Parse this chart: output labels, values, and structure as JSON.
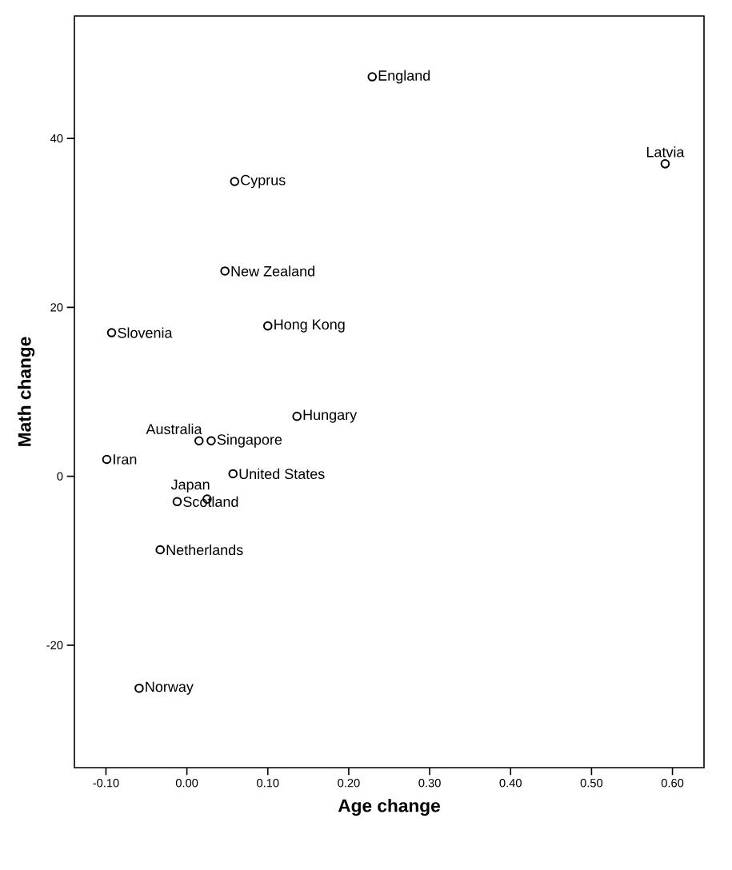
{
  "chart_data": {
    "type": "scatter",
    "xlabel": "Age change",
    "ylabel": "Math change",
    "xlim": [
      -0.139,
      0.639
    ],
    "ylim": [
      -34.5,
      54.5
    ],
    "xticks": [
      {
        "value": -0.1,
        "label": "-0.10"
      },
      {
        "value": 0,
        "label": "0.00"
      },
      {
        "value": 0.1,
        "label": "0.10"
      },
      {
        "value": 0.2,
        "label": "0.20"
      },
      {
        "value": 0.3,
        "label": "0.30"
      },
      {
        "value": 0.4,
        "label": "0.40"
      },
      {
        "value": 0.5,
        "label": "0.50"
      },
      {
        "value": 0.6,
        "label": "0.60"
      }
    ],
    "yticks": [
      -20,
      0,
      20,
      40
    ],
    "marker": "circle",
    "grid": false,
    "legend": false,
    "series": [
      {
        "color": "#000000",
        "x": [
          0.229,
          0.591,
          0.059,
          0.047,
          -0.093,
          0.1,
          0.136,
          0.015,
          0.03,
          -0.099,
          0.057,
          0.025,
          -0.012,
          -0.033,
          -0.059
        ],
        "values": [
          47.3,
          37.0,
          34.9,
          24.3,
          17.0,
          17.8,
          7.1,
          4.2,
          4.2,
          2.0,
          0.3,
          -2.7,
          -3.0,
          -8.7,
          -25.1
        ]
      }
    ],
    "annotations": [
      {
        "text": "England",
        "x": 0.229,
        "y": 47.3
      },
      {
        "text": "Latvia",
        "x": 0.591,
        "y": 37.0
      },
      {
        "text": "Cyprus",
        "x": 0.059,
        "y": 34.9
      },
      {
        "text": "New Zealand",
        "x": 0.047,
        "y": 24.3
      },
      {
        "text": "Slovenia",
        "x": -0.093,
        "y": 17.0
      },
      {
        "text": "Hong Kong",
        "x": 0.1,
        "y": 17.8
      },
      {
        "text": "Hungary",
        "x": 0.136,
        "y": 7.1
      },
      {
        "text": "Australia",
        "x": 0.015,
        "y": 4.2
      },
      {
        "text": "Singapore",
        "x": 0.03,
        "y": 4.2
      },
      {
        "text": "Iran",
        "x": -0.099,
        "y": 2.0
      },
      {
        "text": "United States",
        "x": 0.057,
        "y": 0.3
      },
      {
        "text": "Japan",
        "x": 0.025,
        "y": -2.7
      },
      {
        "text": "Scotland",
        "x": -0.012,
        "y": -3.0
      },
      {
        "text": "Netherlands",
        "x": -0.033,
        "y": -8.7
      },
      {
        "text": "Norway",
        "x": -0.059,
        "y": -25.1
      }
    ]
  }
}
